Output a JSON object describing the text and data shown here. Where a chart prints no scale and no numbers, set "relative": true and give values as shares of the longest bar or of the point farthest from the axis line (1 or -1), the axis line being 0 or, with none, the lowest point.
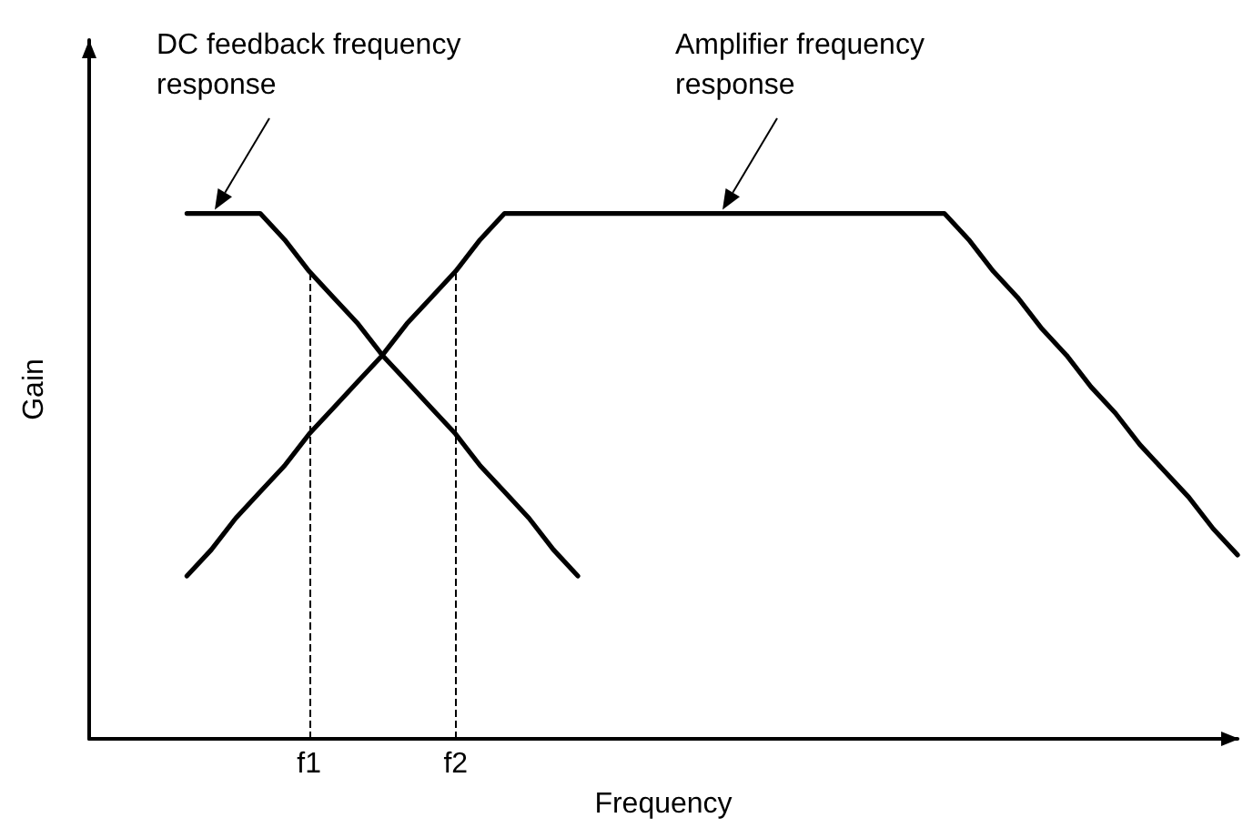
{
  "chart_data": {
    "type": "line",
    "relative": true,
    "xlabel": "Frequency",
    "ylabel": "Gain",
    "categories": [
      null,
      null,
      null,
      null,
      null,
      null,
      null,
      null,
      null,
      "f1",
      null,
      null,
      null,
      null,
      null,
      "f2",
      null,
      null,
      null,
      null,
      null,
      null,
      null,
      null,
      null,
      null,
      null,
      null,
      null,
      null,
      null,
      null,
      null,
      null,
      null,
      null,
      null,
      null,
      null,
      null,
      null,
      null,
      null,
      null,
      null,
      null,
      null,
      null
    ],
    "series": [
      {
        "color": "#000000",
        "values": [
          null,
          null,
          null,
          null,
          1,
          1,
          1,
          1,
          0.95,
          0.89,
          0.84,
          0.79,
          0.73,
          0.68,
          0.63,
          0.58,
          0.52,
          0.47,
          0.42,
          0.36,
          0.31,
          null,
          null,
          null,
          null,
          null,
          null,
          null,
          null,
          null,
          null,
          null,
          null,
          null,
          null,
          null,
          null,
          null,
          null,
          null,
          null,
          null,
          null,
          null,
          null,
          null,
          null,
          null
        ]
      },
      {
        "color": "#000000",
        "values": [
          null,
          null,
          null,
          null,
          0.31,
          0.36,
          0.42,
          0.47,
          0.52,
          0.58,
          0.63,
          0.68,
          0.73,
          0.79,
          0.84,
          0.89,
          0.95,
          1,
          1,
          1,
          1,
          1,
          1,
          1,
          1,
          1,
          1,
          1,
          1,
          1,
          1,
          1,
          1,
          1,
          1,
          1,
          0.95,
          0.89,
          0.84,
          0.78,
          0.73,
          0.67,
          0.62,
          0.56,
          0.51,
          0.46,
          0.4,
          0.35
        ]
      }
    ],
    "ref_lines": [
      {
        "axis": "x",
        "value": "f1",
        "line_style": "dashed"
      },
      {
        "axis": "x",
        "value": "f2",
        "line_style": "dashed"
      }
    ],
    "annotations": [
      "DC feedback frequency response",
      "Amplifier frequency response"
    ],
    "marker": "none",
    "line_style": "solid",
    "grid": false
  }
}
